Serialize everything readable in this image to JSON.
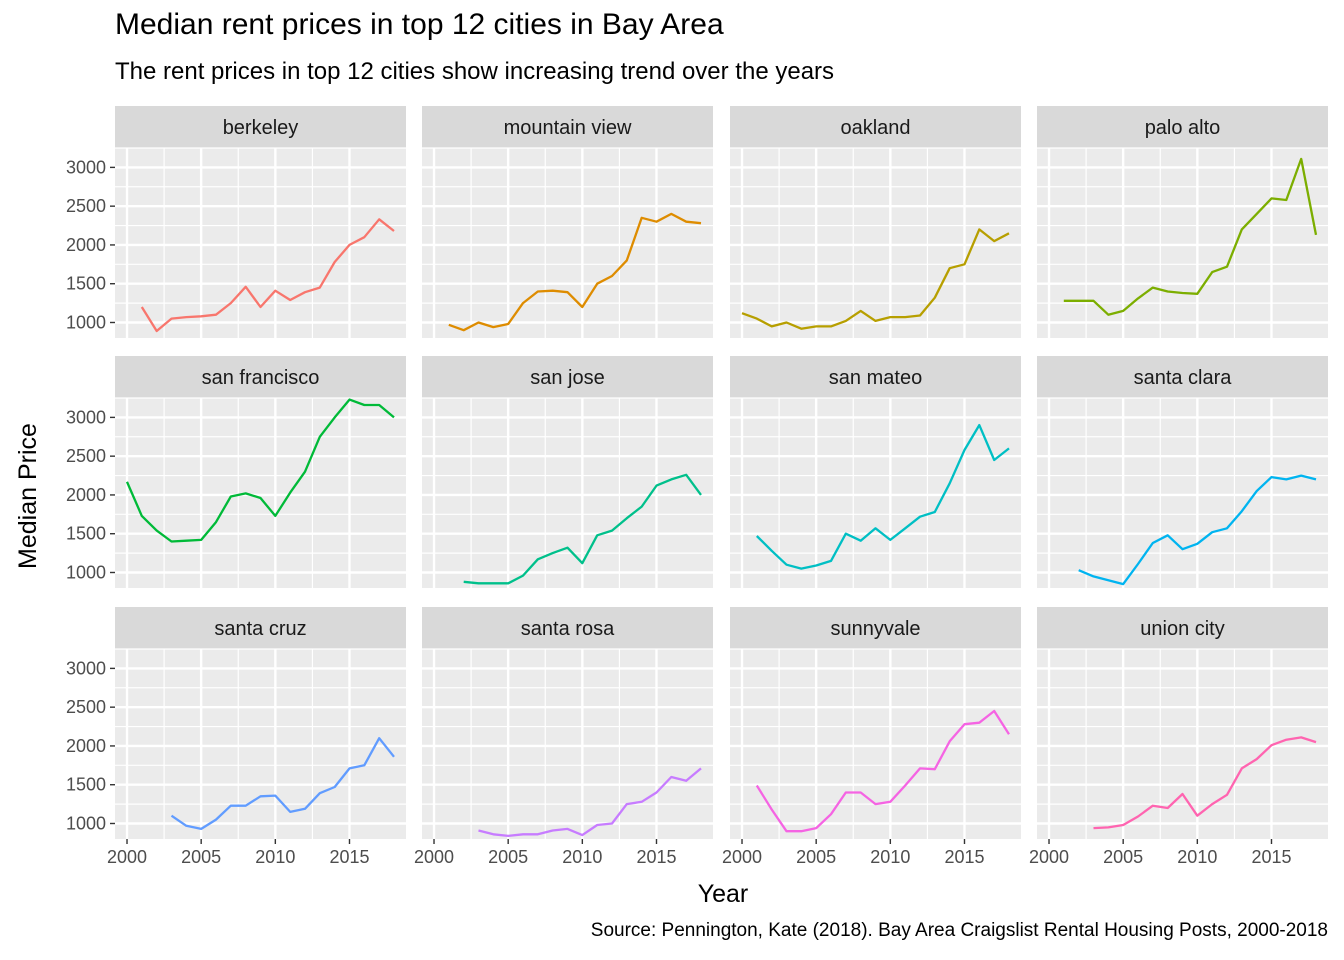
{
  "chart_data": {
    "type": "line",
    "title": "Median rent prices in top 12 cities in Bay Area",
    "subtitle": "The rent prices in top 12 cities show increasing trend over the years",
    "xlabel": "Year",
    "ylabel": "Median Price",
    "caption": "Source: Pennington, Kate (2018). Bay Area Craigslist Rental Housing Posts, 2000-2018",
    "xlim": [
      2000,
      2018
    ],
    "ylim": [
      800,
      3250
    ],
    "x_ticks": [
      2000,
      2005,
      2010,
      2015
    ],
    "y_ticks": [
      1000,
      1500,
      2000,
      2500,
      3000
    ],
    "grid": true,
    "legend": "none",
    "panels": [
      {
        "name": "berkeley",
        "color": "#F8766D",
        "x": [
          2001,
          2002,
          2003,
          2004,
          2005,
          2006,
          2007,
          2008,
          2009,
          2010,
          2011,
          2012,
          2013,
          2014,
          2015,
          2016,
          2017,
          2018
        ],
        "y": [
          1200,
          890,
          1050,
          1070,
          1080,
          1100,
          1250,
          1460,
          1200,
          1410,
          1290,
          1390,
          1450,
          1780,
          2000,
          2100,
          2330,
          2180
        ]
      },
      {
        "name": "mountain view",
        "color": "#DE8C00",
        "x": [
          2001,
          2002,
          2003,
          2004,
          2005,
          2006,
          2007,
          2008,
          2009,
          2010,
          2011,
          2012,
          2013,
          2014,
          2015,
          2016,
          2017,
          2018
        ],
        "y": [
          970,
          900,
          1000,
          940,
          980,
          1250,
          1400,
          1410,
          1390,
          1200,
          1500,
          1600,
          1800,
          2350,
          2300,
          2400,
          2300,
          2280
        ]
      },
      {
        "name": "oakland",
        "color": "#B79F00",
        "x": [
          2000,
          2001,
          2002,
          2003,
          2004,
          2005,
          2006,
          2007,
          2008,
          2009,
          2010,
          2011,
          2012,
          2013,
          2014,
          2015,
          2016,
          2017,
          2018
        ],
        "y": [
          1120,
          1050,
          950,
          1000,
          920,
          950,
          950,
          1020,
          1150,
          1020,
          1070,
          1070,
          1090,
          1320,
          1700,
          1750,
          2200,
          2050,
          2150
        ]
      },
      {
        "name": "palo alto",
        "color": "#7CAE00",
        "x": [
          2001,
          2002,
          2003,
          2004,
          2005,
          2006,
          2007,
          2008,
          2009,
          2010,
          2011,
          2012,
          2013,
          2014,
          2015,
          2016,
          2017,
          2018
        ],
        "y": [
          1280,
          1280,
          1280,
          1100,
          1150,
          1310,
          1450,
          1400,
          1380,
          1370,
          1650,
          1720,
          2200,
          2400,
          2600,
          2580,
          3110,
          2130
        ]
      },
      {
        "name": "san francisco",
        "color": "#00BA38",
        "x": [
          2000,
          2001,
          2002,
          2003,
          2004,
          2005,
          2006,
          2007,
          2008,
          2009,
          2010,
          2011,
          2012,
          2013,
          2014,
          2015,
          2016,
          2017,
          2018
        ],
        "y": [
          2170,
          1730,
          1540,
          1400,
          1410,
          1420,
          1650,
          1980,
          2020,
          1960,
          1730,
          2030,
          2300,
          2750,
          3000,
          3230,
          3160,
          3160,
          3000
        ]
      },
      {
        "name": "san jose",
        "color": "#00C08B",
        "x": [
          2002,
          2003,
          2004,
          2005,
          2006,
          2007,
          2008,
          2009,
          2010,
          2011,
          2012,
          2013,
          2014,
          2015,
          2016,
          2017,
          2018
        ],
        "y": [
          880,
          860,
          860,
          860,
          960,
          1170,
          1250,
          1320,
          1120,
          1480,
          1540,
          1700,
          1850,
          2120,
          2200,
          2260,
          2000
        ]
      },
      {
        "name": "san mateo",
        "color": "#00BFC4",
        "x": [
          2001,
          2002,
          2003,
          2004,
          2005,
          2006,
          2007,
          2008,
          2009,
          2010,
          2011,
          2012,
          2013,
          2014,
          2015,
          2016,
          2017,
          2018
        ],
        "y": [
          1470,
          1280,
          1100,
          1050,
          1090,
          1150,
          1500,
          1410,
          1570,
          1420,
          1570,
          1720,
          1780,
          2150,
          2580,
          2900,
          2450,
          2600
        ]
      },
      {
        "name": "santa clara",
        "color": "#00B4F0",
        "x": [
          2002,
          2003,
          2004,
          2005,
          2006,
          2007,
          2008,
          2009,
          2010,
          2011,
          2012,
          2013,
          2014,
          2015,
          2016,
          2017,
          2018
        ],
        "y": [
          1030,
          950,
          900,
          850,
          1110,
          1380,
          1480,
          1300,
          1370,
          1520,
          1570,
          1790,
          2050,
          2230,
          2200,
          2250,
          2200
        ]
      },
      {
        "name": "santa cruz",
        "color": "#619CFF",
        "x": [
          2003,
          2004,
          2005,
          2006,
          2007,
          2008,
          2009,
          2010,
          2011,
          2012,
          2013,
          2014,
          2015,
          2016,
          2017,
          2018
        ],
        "y": [
          1100,
          970,
          930,
          1050,
          1230,
          1230,
          1350,
          1360,
          1150,
          1190,
          1390,
          1470,
          1710,
          1750,
          2100,
          1860
        ]
      },
      {
        "name": "santa rosa",
        "color": "#C77CFF",
        "x": [
          2003,
          2004,
          2005,
          2006,
          2007,
          2008,
          2009,
          2010,
          2011,
          2012,
          2013,
          2014,
          2015,
          2016,
          2017,
          2018
        ],
        "y": [
          910,
          860,
          840,
          860,
          860,
          910,
          930,
          850,
          980,
          1000,
          1250,
          1280,
          1400,
          1600,
          1550,
          1710
        ]
      },
      {
        "name": "sunnyvale",
        "color": "#F564E3",
        "x": [
          2001,
          2002,
          2003,
          2004,
          2005,
          2006,
          2007,
          2008,
          2009,
          2010,
          2011,
          2012,
          2013,
          2014,
          2015,
          2016,
          2017,
          2018
        ],
        "y": [
          1490,
          1180,
          900,
          900,
          940,
          1120,
          1400,
          1400,
          1250,
          1280,
          1490,
          1710,
          1700,
          2060,
          2280,
          2300,
          2450,
          2150
        ]
      },
      {
        "name": "union city",
        "color": "#FF64B0",
        "x": [
          2003,
          2004,
          2005,
          2006,
          2007,
          2008,
          2009,
          2010,
          2011,
          2012,
          2013,
          2014,
          2015,
          2016,
          2017,
          2018
        ],
        "y": [
          940,
          950,
          980,
          1090,
          1230,
          1200,
          1380,
          1100,
          1250,
          1370,
          1710,
          1830,
          2010,
          2080,
          2110,
          2050
        ]
      }
    ]
  }
}
